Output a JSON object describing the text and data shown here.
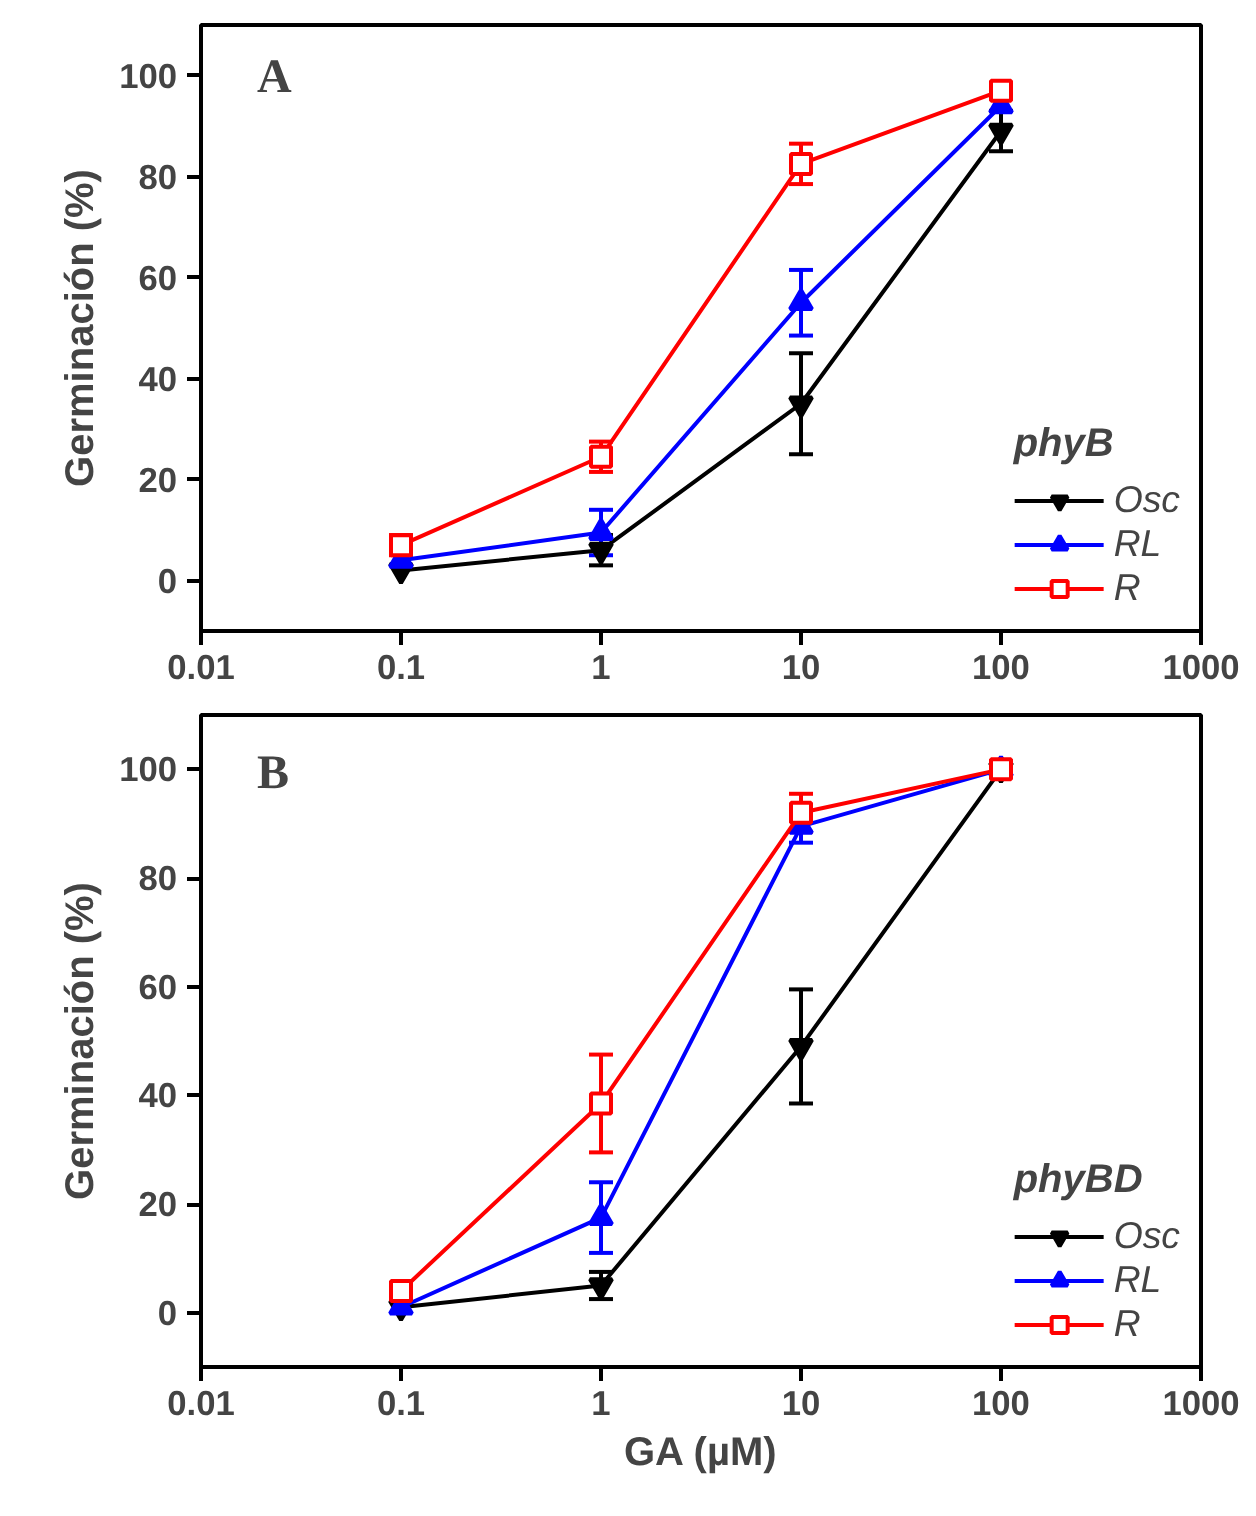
{
  "chart_data": [
    {
      "type": "line",
      "annotations": [
        "A"
      ],
      "ylabel": "Germinación (%)",
      "legend_title": "phyB",
      "legend": "bottom right",
      "log": "x",
      "grid": false,
      "line_style": "solid",
      "x": [
        0.1,
        1,
        10,
        100
      ],
      "xlim": [
        0.01,
        1000
      ],
      "xticks": [
        0.01,
        0.1,
        1,
        10,
        100,
        1000
      ],
      "ylim": [
        -10,
        110
      ],
      "yticks": [
        0,
        20,
        40,
        60,
        80,
        100
      ],
      "series": [
        {
          "name": "Osc",
          "color": "#000000",
          "marker": "triangle",
          "values": [
            2,
            6,
            35,
            89
          ],
          "errors": [
            null,
            3,
            10,
            4
          ]
        },
        {
          "name": "RL",
          "color": "#0000ff",
          "marker": "triangle",
          "values": [
            4,
            9.5,
            55,
            94
          ],
          "errors": [
            null,
            4.5,
            6.5,
            null
          ]
        },
        {
          "name": "R",
          "color": "#ff0000",
          "marker": "square",
          "values": [
            7,
            24.5,
            82.5,
            97
          ],
          "errors": [
            2,
            3,
            4,
            null
          ]
        }
      ]
    },
    {
      "type": "line",
      "annotations": [
        "B"
      ],
      "xlabel": "GA (µM)",
      "ylabel": "Germinación (%)",
      "legend_title": "phyBD",
      "legend": "bottom right",
      "log": "x",
      "grid": false,
      "line_style": "solid",
      "x": [
        0.1,
        1,
        10,
        100
      ],
      "xlim": [
        0.01,
        1000
      ],
      "xticks": [
        0.01,
        0.1,
        1,
        10,
        100,
        1000
      ],
      "ylim": [
        -10,
        110
      ],
      "yticks": [
        0,
        20,
        40,
        60,
        80,
        100
      ],
      "series": [
        {
          "name": "Osc",
          "color": "#000000",
          "marker": "triangle",
          "values": [
            1,
            5,
            49,
            100
          ],
          "errors": [
            null,
            2.5,
            10.5,
            null
          ]
        },
        {
          "name": "RL",
          "color": "#0000ff",
          "marker": "triangle",
          "values": [
            1,
            17.5,
            89.5,
            100
          ],
          "errors": [
            null,
            6.5,
            3,
            null
          ]
        },
        {
          "name": "R",
          "color": "#ff0000",
          "marker": "square",
          "values": [
            4,
            38.5,
            92,
            100
          ],
          "errors": [
            null,
            9,
            3.5,
            null
          ]
        }
      ]
    }
  ]
}
